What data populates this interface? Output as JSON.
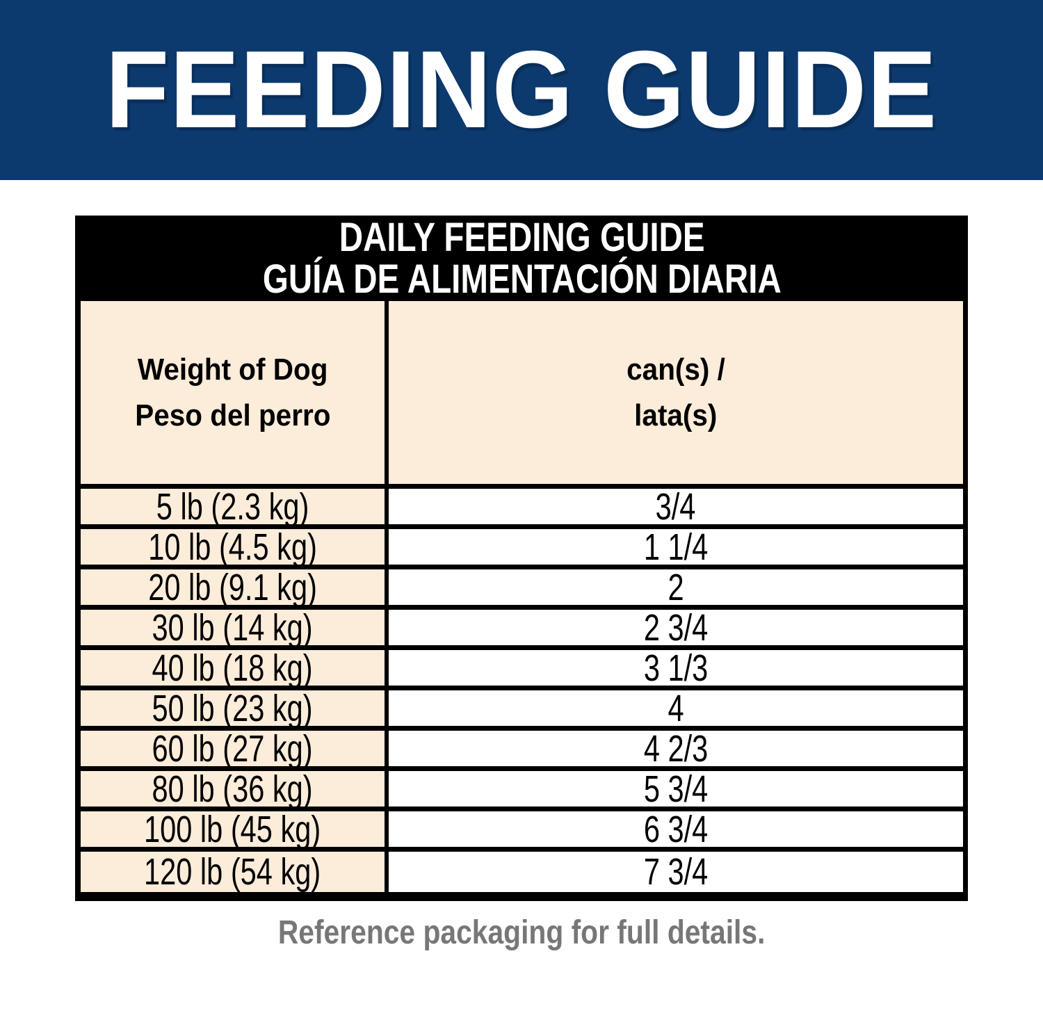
{
  "banner": {
    "title": "FEEDING GUIDE"
  },
  "table": {
    "title_en": "DAILY FEEDING GUIDE",
    "title_es": "GUÍA DE ALIMENTACIÓN DIARIA",
    "columns": [
      {
        "label_en": "Weight of Dog",
        "label_es": "Peso del perro"
      },
      {
        "label_en": "can(s) /",
        "label_es": "lata(s)"
      }
    ],
    "rows": [
      {
        "weight": "5 lb (2.3 kg)",
        "cans": "3/4"
      },
      {
        "weight": "10 lb (4.5 kg)",
        "cans": "1 1/4"
      },
      {
        "weight": "20 lb (9.1 kg)",
        "cans": "2"
      },
      {
        "weight": "30 lb (14 kg)",
        "cans": "2 3/4"
      },
      {
        "weight": "40 lb (18 kg)",
        "cans": "3 1/3"
      },
      {
        "weight": "50 lb (23 kg)",
        "cans": "4"
      },
      {
        "weight": "60 lb (27 kg)",
        "cans": "4 2/3"
      },
      {
        "weight": "80 lb (36 kg)",
        "cans": "5 3/4"
      },
      {
        "weight": "100 lb (45 kg)",
        "cans": "6 3/4"
      },
      {
        "weight": "120 lb (54 kg)",
        "cans": "7 3/4"
      }
    ]
  },
  "footer": {
    "note": "Reference packaging for full details."
  },
  "colors": {
    "banner_navy": "#0c3a6e",
    "header_black": "#000000",
    "cell_cream": "#fcecda",
    "cell_white": "#ffffff",
    "footer_gray": "#777777"
  }
}
